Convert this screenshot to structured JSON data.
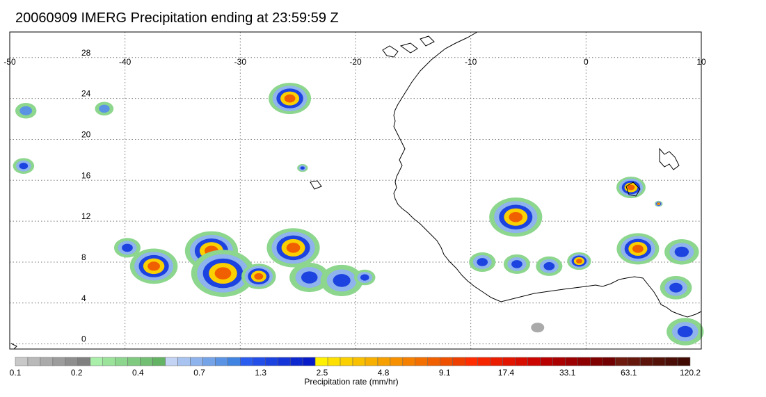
{
  "title": "20060909 IMERG Precipitation ending at 23:59:59 Z",
  "map": {
    "lon_range": [
      -50,
      10
    ],
    "lat_range": [
      -0.5,
      30.5
    ],
    "grid": true,
    "lon_ticks": [
      "-50",
      "-40",
      "-30",
      "-20",
      "-10",
      "0",
      "10"
    ],
    "lat_ticks": [
      "28",
      "24",
      "20",
      "16",
      "12",
      "8",
      "4",
      "0"
    ]
  },
  "colorbar": {
    "label": "Precipitation rate (mm/hr)",
    "tick_labels": [
      "0.1",
      "0.2",
      "0.4",
      "0.7",
      "1.3",
      "2.5",
      "4.8",
      "9.1",
      "17.4",
      "33.1",
      "63.1",
      "120.2"
    ],
    "colors": [
      "#c8c8c8",
      "#b9b9b9",
      "#aaaaaa",
      "#9c9c9c",
      "#8e8e8e",
      "#808080",
      "#a9eea9",
      "#9be29b",
      "#8dd68d",
      "#80ca80",
      "#72be72",
      "#64b264",
      "#c3d3f4",
      "#a9c3f0",
      "#8fb3ec",
      "#75a3e8",
      "#5b93e4",
      "#4183e0",
      "#2a5cf0",
      "#234fe8",
      "#1c42e0",
      "#1535d8",
      "#0e28d0",
      "#071bc8",
      "#fff000",
      "#fde000",
      "#fbd000",
      "#f9c000",
      "#f7b000",
      "#f5a000",
      "#f79000",
      "#f58000",
      "#f37000",
      "#f16000",
      "#ef5000",
      "#ed4000",
      "#ff2d00",
      "#f52500",
      "#eb1d00",
      "#e11500",
      "#d70d00",
      "#cd0500",
      "#b80000",
      "#aa0000",
      "#9c0000",
      "#8e0000",
      "#800000",
      "#720000",
      "#6e1a0e",
      "#65170c",
      "#5c140a",
      "#531108",
      "#4a0e06",
      "#410b04"
    ]
  },
  "precip_cells": [
    {
      "lon": -41.8,
      "lat": 23.0,
      "r": 0.7,
      "level": "light"
    },
    {
      "lon": -48.6,
      "lat": 22.8,
      "r": 0.8,
      "level": "light"
    },
    {
      "lon": -48.8,
      "lat": 17.4,
      "r": 0.8,
      "level": "moderate"
    },
    {
      "lon": -25.7,
      "lat": 24.0,
      "r": 1.6,
      "level": "heavy"
    },
    {
      "lon": -24.6,
      "lat": 17.2,
      "r": 0.4,
      "level": "moderate"
    },
    {
      "lon": -39.8,
      "lat": 9.4,
      "r": 1.0,
      "level": "moderate"
    },
    {
      "lon": -37.5,
      "lat": 7.6,
      "r": 1.8,
      "level": "heavy"
    },
    {
      "lon": -32.5,
      "lat": 9.1,
      "r": 2.0,
      "level": "heavy"
    },
    {
      "lon": -31.5,
      "lat": 6.9,
      "r": 2.4,
      "level": "heavy"
    },
    {
      "lon": -28.4,
      "lat": 6.6,
      "r": 1.3,
      "level": "heavy"
    },
    {
      "lon": -25.4,
      "lat": 9.4,
      "r": 2.0,
      "level": "heavy"
    },
    {
      "lon": -24.0,
      "lat": 6.5,
      "r": 1.5,
      "level": "moderate"
    },
    {
      "lon": -21.2,
      "lat": 6.2,
      "r": 1.6,
      "level": "moderate"
    },
    {
      "lon": -19.2,
      "lat": 6.5,
      "r": 0.8,
      "level": "moderate"
    },
    {
      "lon": -6.1,
      "lat": 12.4,
      "r": 2.0,
      "level": "heavy"
    },
    {
      "lon": -9.0,
      "lat": 8.0,
      "r": 1.0,
      "level": "moderate"
    },
    {
      "lon": -6.0,
      "lat": 7.8,
      "r": 1.0,
      "level": "moderate"
    },
    {
      "lon": -3.2,
      "lat": 7.6,
      "r": 1.0,
      "level": "moderate"
    },
    {
      "lon": -0.6,
      "lat": 8.1,
      "r": 0.9,
      "level": "heavy"
    },
    {
      "lon": 3.9,
      "lat": 15.3,
      "r": 1.1,
      "level": "heavy"
    },
    {
      "lon": 6.3,
      "lat": 13.7,
      "r": 0.3,
      "level": "heavy"
    },
    {
      "lon": 4.5,
      "lat": 9.3,
      "r": 1.6,
      "level": "heavy"
    },
    {
      "lon": 8.3,
      "lat": 9.0,
      "r": 1.3,
      "level": "moderate"
    },
    {
      "lon": 7.8,
      "lat": 5.5,
      "r": 1.2,
      "level": "moderate"
    },
    {
      "lon": 8.6,
      "lat": 1.2,
      "r": 1.4,
      "level": "moderate"
    },
    {
      "lon": -4.2,
      "lat": 1.6,
      "r": 0.5,
      "level": "none"
    }
  ]
}
